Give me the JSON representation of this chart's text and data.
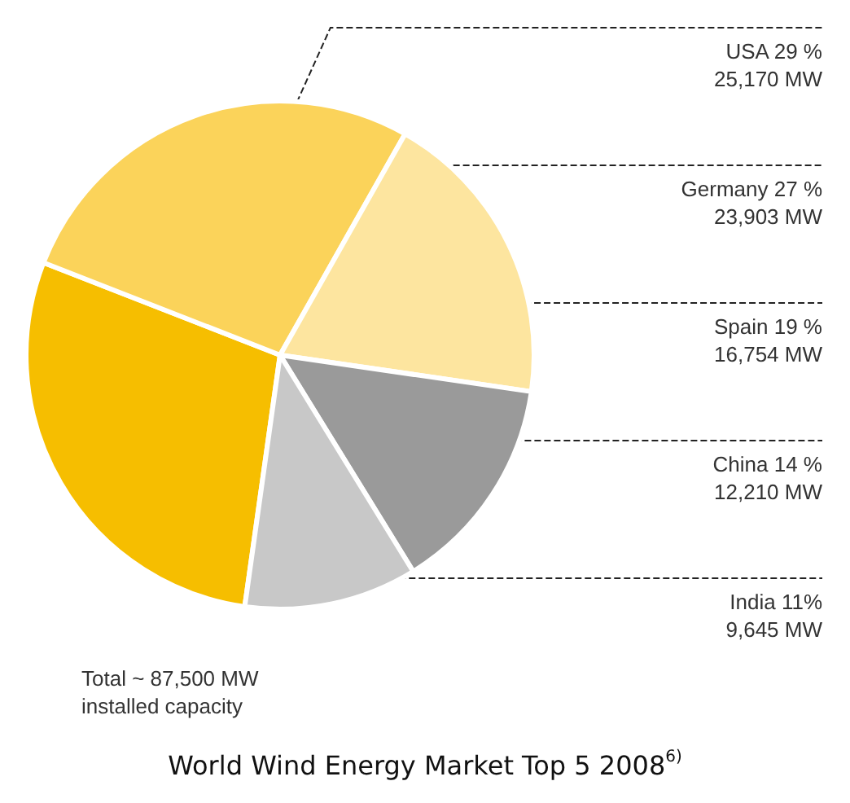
{
  "chart_data": {
    "type": "pie",
    "title": "World Wind Energy Market Top 5 2008$^{6)}$",
    "categories": [
      "USA",
      "Germany",
      "Spain",
      "China",
      "India"
    ],
    "values": [
      25170,
      23903,
      16754,
      12210,
      9645
    ],
    "value_labels": [
      "29 %\n25,170 MW",
      "27 %\n23,903 MW",
      "19 %\n16,754 MW",
      "14 %\n12,210 MW",
      "11%\n9,645 MW"
    ],
    "colors": [
      "#f6be00",
      "#fbd35a",
      "#fde59f",
      "#9a9a9a",
      "#c8c8c8"
    ],
    "annotations": [
      "Total ~ 87,500 MW\ninstalled capacity"
    ],
    "legend": false
  }
}
